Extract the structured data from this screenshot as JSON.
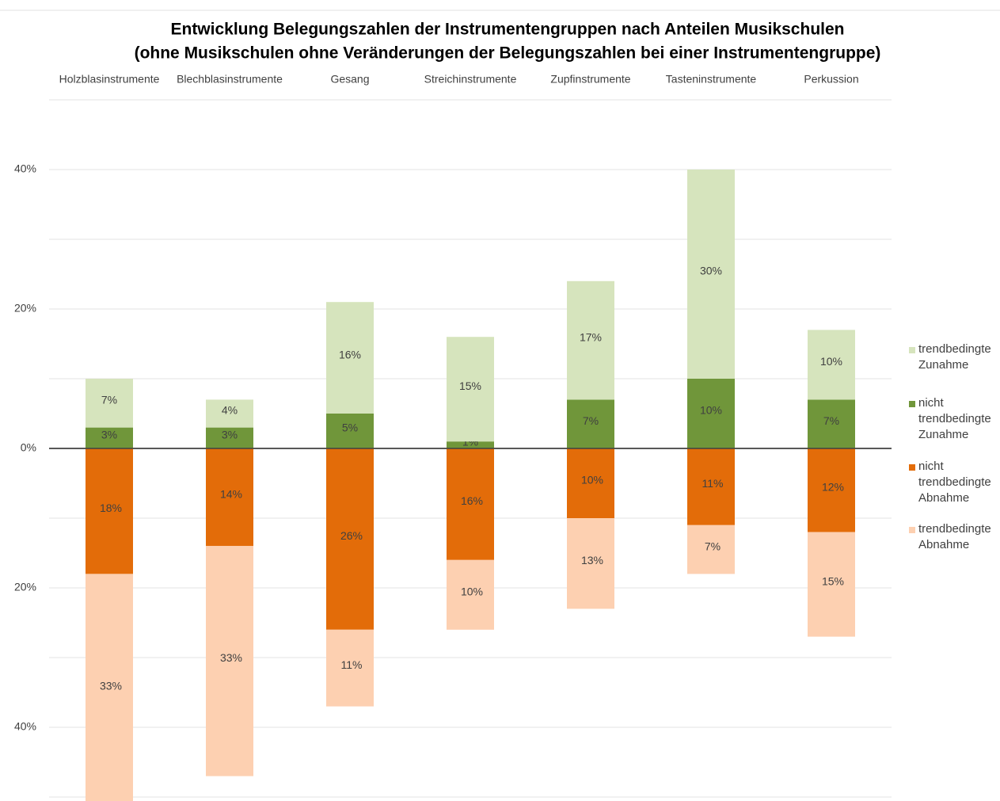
{
  "chart_data": {
    "type": "bar",
    "stacked": true,
    "title": "Entwicklung Belegungszahlen der Instrumentengruppen nach Anteilen Musikschulen",
    "subtitle": "(ohne Musikschulen ohne Veränderungen der Belegungszahlen bei einer Instrumentengruppe)",
    "categories": [
      "Holzblasinstrumente",
      "Blechblasinstrumente",
      "Gesang",
      "Streichinstrumente",
      "Zupfinstrumente",
      "Tasteninstrumente",
      "Perkussion"
    ],
    "series": [
      {
        "name": "nicht trendbedingte Zunahme",
        "color": "#70963a",
        "values": [
          3,
          3,
          5,
          1,
          7,
          10,
          7
        ],
        "value_labels": [
          "3%",
          "3%",
          "5%",
          "1%",
          "7%",
          "10%",
          "7%"
        ]
      },
      {
        "name": "trendbedingte Zunahme",
        "color": "#d6e4bd",
        "values": [
          7,
          4,
          16,
          15,
          17,
          30,
          10
        ],
        "value_labels": [
          "7%",
          "4%",
          "16%",
          "15%",
          "17%",
          "30%",
          "10%"
        ]
      },
      {
        "name": "nicht trendbedingte Abnahme",
        "color": "#e36c09",
        "values": [
          -18,
          -14,
          -26,
          -16,
          -10,
          -11,
          -12
        ],
        "value_labels": [
          "18%",
          "14%",
          "26%",
          "16%",
          "10%",
          "11%",
          "12%"
        ]
      },
      {
        "name": "trendbedingte Abnahme",
        "color": "#fdd0b1",
        "values": [
          -33,
          -33,
          -11,
          -10,
          -13,
          -7,
          -15
        ],
        "value_labels": [
          "33%",
          "33%",
          "11%",
          "10%",
          "13%",
          "7%",
          "15%"
        ]
      }
    ],
    "legend_order": [
      1,
      0,
      2,
      3
    ],
    "ylim": [
      -50,
      50
    ],
    "yticks": [
      {
        "value": 40,
        "label": "40%"
      },
      {
        "value": 20,
        "label": "20%"
      },
      {
        "value": 0,
        "label": "0%"
      },
      {
        "value": -20,
        "label": "20%"
      },
      {
        "value": -40,
        "label": "40%"
      }
    ],
    "minor_yticks": [
      50,
      30,
      10,
      -10,
      -30,
      -50
    ],
    "grid": true,
    "legend": "right"
  }
}
